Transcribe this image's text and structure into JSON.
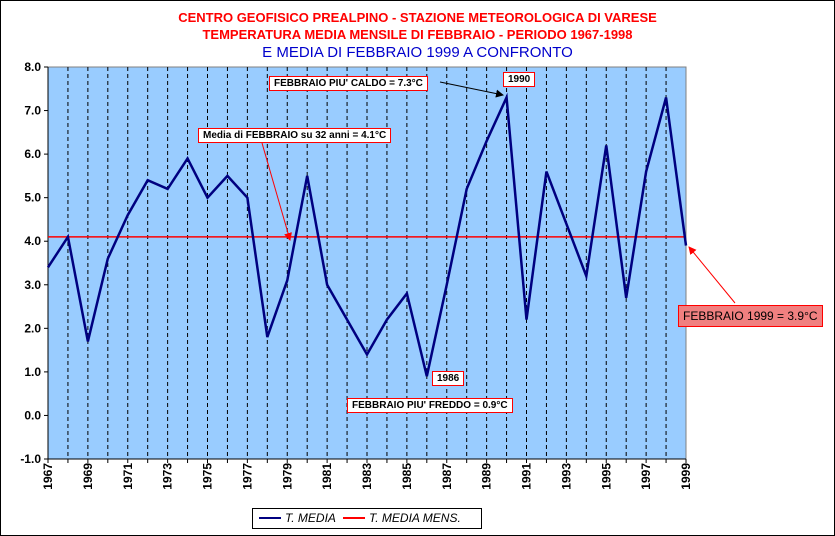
{
  "titles": {
    "line1": "CENTRO GEOFISICO PREALPINO - STAZIONE METEOROLOGICA DI VARESE",
    "line2": "TEMPERATURA MEDIA MENSILE DI FEBBRAIO - PERIODO 1967-1998",
    "line3": "E MEDIA DI FEBBRAIO 1999 A CONFRONTO"
  },
  "annotations": {
    "warmest": "FEBBRAIO PIU' CALDO = 7.3°C",
    "warmest_year": "1990",
    "mean": "Media di FEBBRAIO su 32 anni = 4.1°C",
    "coldest": "FEBBRAIO PIU' FREDDO = 0.9°C",
    "coldest_year": "1986",
    "feb1999": "FEBBRAIO 1999 = 3.9°C"
  },
  "legend": {
    "series1": "T. MEDIA",
    "series2": "T. MEDIA MENS."
  },
  "colors": {
    "plot_bg": "#99ccff",
    "series_line": "#000080",
    "mean_line": "#ff0000",
    "title_red": "#ff0000",
    "title_blue": "#0000cc"
  },
  "chart_data": {
    "type": "line",
    "title": "CENTRO GEOFISICO PREALPINO - STAZIONE METEOROLOGICA DI VARESE / TEMPERATURA MEDIA MENSILE DI FEBBRAIO - PERIODO 1967-1998 / E MEDIA DI FEBBRAIO 1999 A CONFRONTO",
    "xlabel": "",
    "ylabel": "",
    "x": [
      1967,
      1968,
      1969,
      1970,
      1971,
      1972,
      1973,
      1974,
      1975,
      1976,
      1977,
      1978,
      1979,
      1980,
      1981,
      1982,
      1983,
      1984,
      1985,
      1986,
      1987,
      1988,
      1989,
      1990,
      1991,
      1992,
      1993,
      1994,
      1995,
      1996,
      1997,
      1998,
      1999
    ],
    "xtick_labels": [
      "1967",
      "1969",
      "1971",
      "1973",
      "1975",
      "1977",
      "1979",
      "1981",
      "1983",
      "1985",
      "1987",
      "1989",
      "1991",
      "1993",
      "1995",
      "1997",
      "1999"
    ],
    "ylim": [
      -1.0,
      8.0
    ],
    "ytick_labels": [
      "-1.0",
      "0.0",
      "1.0",
      "2.0",
      "3.0",
      "4.0",
      "5.0",
      "6.0",
      "7.0",
      "8.0"
    ],
    "grid": "vertical dashed",
    "legend_position": "bottom",
    "series": [
      {
        "name": "T. MEDIA",
        "values": [
          3.4,
          4.1,
          1.7,
          3.6,
          4.6,
          5.4,
          5.2,
          5.9,
          5.0,
          5.5,
          5.0,
          1.8,
          3.1,
          5.5,
          3.0,
          2.2,
          1.4,
          2.2,
          2.8,
          0.9,
          3.0,
          5.2,
          6.3,
          7.3,
          2.2,
          5.6,
          4.4,
          3.2,
          6.2,
          2.7,
          5.6,
          7.3,
          3.9
        ]
      },
      {
        "name": "T. MEDIA MENS.",
        "values": [
          4.1,
          4.1,
          4.1,
          4.1,
          4.1,
          4.1,
          4.1,
          4.1,
          4.1,
          4.1,
          4.1,
          4.1,
          4.1,
          4.1,
          4.1,
          4.1,
          4.1,
          4.1,
          4.1,
          4.1,
          4.1,
          4.1,
          4.1,
          4.1,
          4.1,
          4.1,
          4.1,
          4.1,
          4.1,
          4.1,
          4.1,
          4.1,
          4.1
        ]
      }
    ]
  }
}
